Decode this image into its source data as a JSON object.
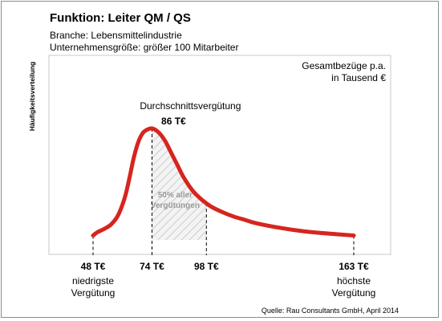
{
  "header": {
    "title": "Funktion: Leiter QM / QS",
    "line1": "Branche: Lebensmittelindustrie",
    "line2": "Unternehmensgröße: größer 100 Mitarbeiter"
  },
  "footer": {
    "source": "Quelle: Rau Consultants GmbH, April 2014"
  },
  "colors": {
    "curve": "#d6251f",
    "hatch": "#bdbdbd",
    "hatch_label": "#9a9a9a",
    "text": "#000000"
  },
  "chart_data": {
    "type": "line",
    "ylabel": "Häufigkeitsverteilung",
    "unit_label": [
      "Gesamtbezüge p.a.",
      "in Tausend €"
    ],
    "xlim": [
      40,
      170
    ],
    "curve": {
      "x": [
        48,
        50,
        53,
        56,
        59,
        62,
        64,
        66,
        68,
        70,
        72,
        74,
        76,
        78,
        80,
        82,
        85,
        88,
        92,
        96,
        100,
        105,
        110,
        115,
        120,
        130,
        140,
        150,
        163
      ],
      "y": [
        0.04,
        0.07,
        0.1,
        0.14,
        0.22,
        0.38,
        0.55,
        0.74,
        0.88,
        0.96,
        0.99,
        1.0,
        0.98,
        0.94,
        0.88,
        0.8,
        0.68,
        0.56,
        0.44,
        0.36,
        0.3,
        0.25,
        0.21,
        0.18,
        0.15,
        0.11,
        0.08,
        0.06,
        0.04
      ]
    },
    "average": {
      "label": "Durchschnittsvergütung",
      "value": 86,
      "value_label": "86 T€"
    },
    "band": {
      "from": 74,
      "to": 98,
      "label": [
        "50% aller",
        "Vergütungen"
      ]
    },
    "markers": [
      {
        "value": 48,
        "label": "48 T€",
        "caption": [
          "niedrigste",
          "Vergütung"
        ]
      },
      {
        "value": 74,
        "label": "74 T€",
        "caption": []
      },
      {
        "value": 98,
        "label": "98 T€",
        "caption": []
      },
      {
        "value": 163,
        "label": "163 T€",
        "caption": [
          "höchste",
          "Vergütung"
        ]
      }
    ]
  }
}
